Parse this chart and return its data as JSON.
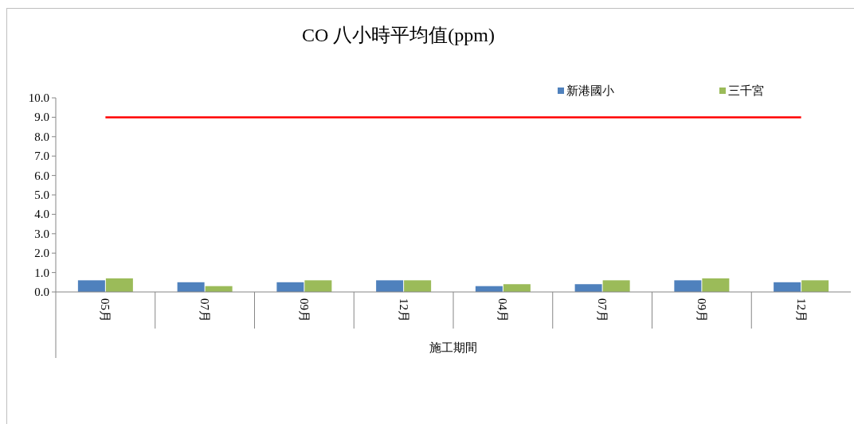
{
  "chart_data": {
    "type": "bar",
    "title": "CO 八小時平均值(ppm)",
    "xlabel": "施工期間",
    "categories": [
      "05月",
      "07月",
      "09月",
      "12月",
      "04月",
      "07月",
      "09月",
      "12月"
    ],
    "series": [
      {
        "name": "新港國小",
        "color": "#4f81bd",
        "values": [
          0.6,
          0.5,
          0.5,
          0.6,
          0.3,
          0.4,
          0.6,
          0.5
        ]
      },
      {
        "name": "三千宮",
        "color": "#9bbb59",
        "values": [
          0.7,
          0.3,
          0.6,
          0.6,
          0.4,
          0.6,
          0.7,
          0.6
        ]
      }
    ],
    "ylim": [
      0,
      10
    ],
    "yticks": [
      {
        "value": 0,
        "label": "0.0"
      },
      {
        "value": 1,
        "label": "1.0"
      },
      {
        "value": 2,
        "label": "2.0"
      },
      {
        "value": 3,
        "label": "3.0"
      },
      {
        "value": 4,
        "label": "4.0"
      },
      {
        "value": 5,
        "label": "5.0"
      },
      {
        "value": 6,
        "label": "6.0"
      },
      {
        "value": 7,
        "label": "7.0"
      },
      {
        "value": 8,
        "label": "8.0"
      },
      {
        "value": 9,
        "label": "9.0"
      },
      {
        "value": 10,
        "label": "10.0"
      }
    ],
    "legend": "top right",
    "ref_lines": [
      {
        "axis": "y",
        "value": 9,
        "color": "#ff0000"
      }
    ]
  }
}
